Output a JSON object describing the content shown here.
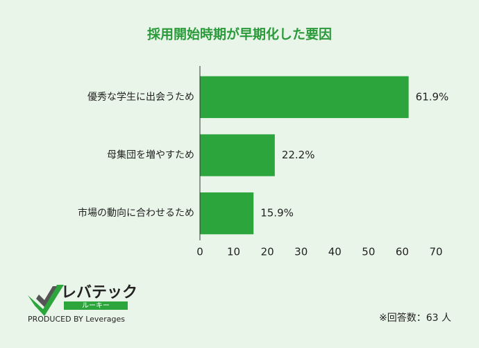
{
  "chart_data": {
    "type": "barh",
    "title": "採用開始時期が早期化した要因",
    "categories": [
      "優秀な学生に出会うため",
      "母集団を増やすため",
      "市場の動向に合わせるため"
    ],
    "values": [
      61.9,
      22.2,
      15.9
    ],
    "value_labels": [
      "61.9%",
      "22.2%",
      "15.9%"
    ],
    "color": "#2ca53c",
    "xlim": [
      0,
      70
    ],
    "xticks": [
      0,
      10,
      20,
      30,
      40,
      50,
      60,
      70
    ],
    "grid": false
  },
  "footer": {
    "note": "※回答数：63 人",
    "logo": "レバテック",
    "logo_sub": "ルーキー",
    "produced_by": "PRODUCED BY Leverages"
  }
}
